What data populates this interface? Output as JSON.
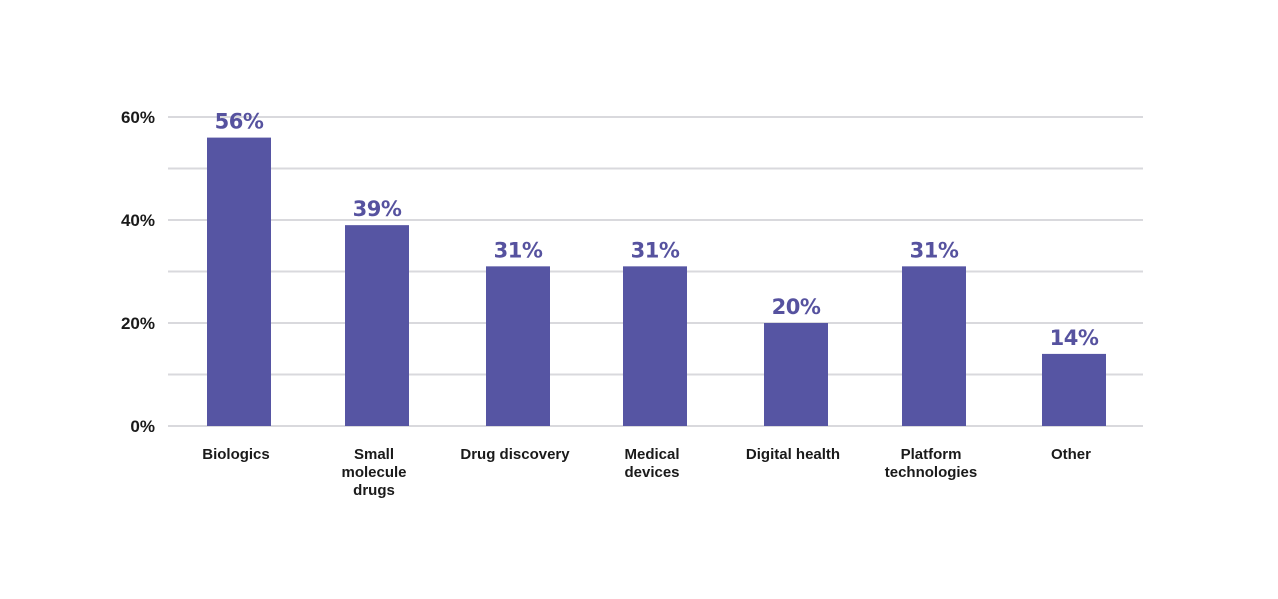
{
  "chart_data": {
    "type": "bar",
    "categories": [
      "Biologics",
      "Small molecule drugs",
      "Drug discovery",
      "Medical devices",
      "Digital health",
      "Platform technologies",
      "Other"
    ],
    "category_label_lines": [
      [
        "Biologics"
      ],
      [
        "Small",
        "molecule",
        "drugs"
      ],
      [
        "Drug discovery"
      ],
      [
        "Medical",
        "devices"
      ],
      [
        "Digital health"
      ],
      [
        "Platform",
        "technologies"
      ],
      [
        "Other"
      ]
    ],
    "values": [
      56,
      39,
      31,
      31,
      20,
      31,
      14
    ],
    "data_labels": [
      "56%",
      "39%",
      "31%",
      "31%",
      "20%",
      "31%",
      "14%"
    ],
    "y_ticks": [
      0,
      20,
      40,
      60
    ],
    "y_tick_labels": [
      "0%",
      "20%",
      "40%",
      "60%"
    ],
    "ylim": [
      0,
      60
    ],
    "minor_gridlines": [
      10,
      30,
      50
    ],
    "grid": true,
    "title": "",
    "xlabel": "",
    "ylabel": "",
    "colors": {
      "bar": "#5655a3",
      "data_label": "#56529f",
      "gridline": "#d9d9dd",
      "text": "#1a1a1a"
    }
  }
}
